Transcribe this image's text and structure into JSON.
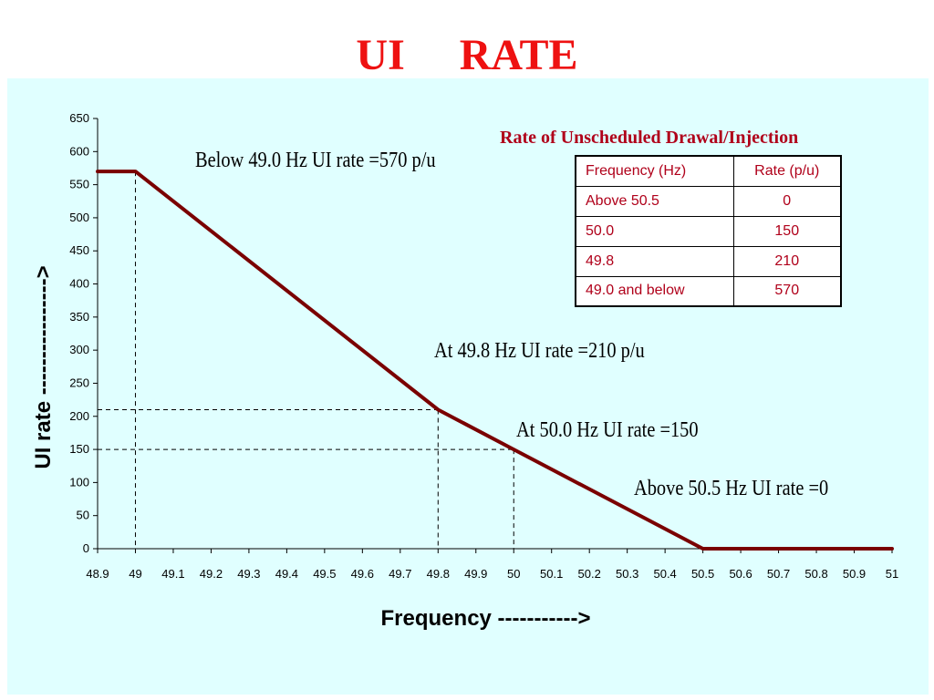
{
  "slide": {
    "title": "UI     RATE"
  },
  "table": {
    "title": "Rate of Unscheduled Drawal/Injection",
    "headers": [
      "Frequency (Hz)",
      "Rate (p/u)"
    ],
    "rows": [
      [
        "Above 50.5",
        "0"
      ],
      [
        "50.0",
        "150"
      ],
      [
        "49.8",
        "210"
      ],
      [
        "49.0 and below",
        "570"
      ]
    ]
  },
  "annotations": {
    "below49": "Below 49.0 Hz UI rate =570 p/u",
    "at498": "At 49.8 Hz UI rate =210 p/u",
    "at500": "At 50.0 Hz UI rate =150",
    "above505": "Above 50.5 Hz UI rate =0"
  },
  "colors": {
    "title": "#ee1111",
    "panel": "#e0ffff",
    "line": "#7a0000",
    "table_text": "#b0001a"
  },
  "chart_data": {
    "type": "line",
    "xlabel": "Frequency ----------->",
    "ylabel": "UI rate    ---------------->",
    "xlim": [
      48.9,
      51
    ],
    "ylim": [
      0,
      650
    ],
    "x_ticks": [
      "48.9",
      "49",
      "49.1",
      "49.2",
      "49.3",
      "49.4",
      "49.5",
      "49.6",
      "49.7",
      "49.8",
      "49.9",
      "50",
      "50.1",
      "50.2",
      "50.3",
      "50.4",
      "50.5",
      "50.6",
      "50.7",
      "50.8",
      "50.9",
      "51"
    ],
    "y_ticks": [
      "0",
      "50",
      "100",
      "150",
      "200",
      "250",
      "300",
      "350",
      "400",
      "450",
      "500",
      "550",
      "600",
      "650"
    ],
    "grid": false,
    "series": [
      {
        "x": [
          48.9,
          49.0,
          49.8,
          50.0,
          50.5,
          51.0
        ],
        "y": [
          570,
          570,
          210,
          150,
          0,
          0
        ]
      }
    ],
    "reference_lines": [
      {
        "x": 49.0,
        "y": 570
      },
      {
        "x": 49.8,
        "y": 210
      },
      {
        "x": 50.0,
        "y": 150
      }
    ]
  }
}
